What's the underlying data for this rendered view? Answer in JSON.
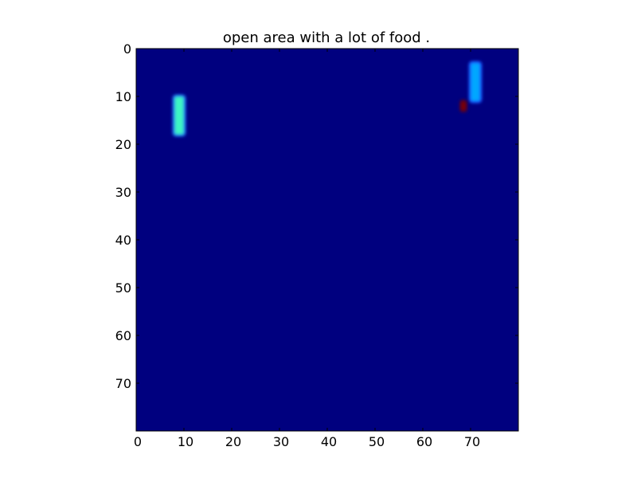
{
  "chart_data": {
    "type": "heatmap",
    "title": "open area with a lot of food .",
    "xlabel": "",
    "ylabel": "",
    "xlim": [
      0,
      80
    ],
    "ylim": [
      80,
      0
    ],
    "x_ticks": [
      "0",
      "10",
      "20",
      "30",
      "40",
      "50",
      "60",
      "70"
    ],
    "y_ticks": [
      "0",
      "10",
      "20",
      "30",
      "40",
      "50",
      "60",
      "70"
    ],
    "grid": false,
    "background_color": "#00007f",
    "colormap": "jet",
    "cells": [
      {
        "name": "teal-bar",
        "x": [
          8,
          10
        ],
        "y": [
          10,
          18
        ],
        "color": "#3cf5c3",
        "glow": "#1e6bff"
      },
      {
        "name": "blue-bar",
        "x": [
          70,
          72
        ],
        "y": [
          3,
          11
        ],
        "color": "#00a8ff",
        "glow": "#1e4bff"
      },
      {
        "name": "red-dot",
        "x": [
          68,
          69
        ],
        "y": [
          11,
          13
        ],
        "color": "#800000",
        "glow": "#3a0040"
      }
    ]
  }
}
